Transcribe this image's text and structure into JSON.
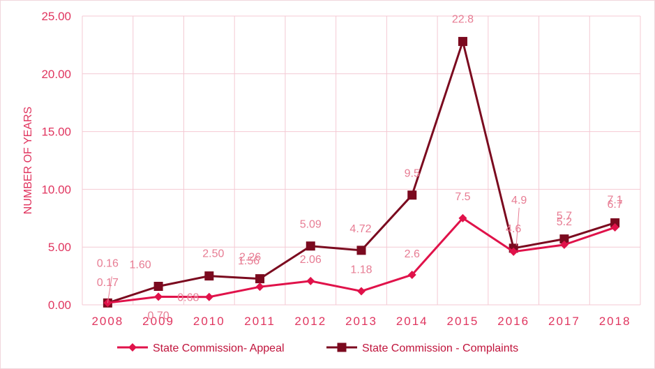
{
  "chart_data": {
    "type": "line",
    "title": "",
    "xlabel": "",
    "ylabel": "NUMBER OF YEARS",
    "ylim": [
      0,
      25
    ],
    "yticks": [
      "0.00",
      "5.00",
      "10.00",
      "15.00",
      "20.00",
      "25.00"
    ],
    "categories": [
      "2008",
      "2009",
      "2010",
      "2011",
      "2012",
      "2013",
      "2014",
      "2015",
      "2016",
      "2017",
      "2018"
    ],
    "grid": true,
    "legend_position": "bottom",
    "series": [
      {
        "name": "State Commission- Appeal",
        "color": "#e0124a",
        "marker": "diamond",
        "values": [
          0.17,
          0.7,
          0.68,
          1.56,
          2.06,
          1.18,
          2.6,
          7.5,
          4.6,
          5.2,
          6.7
        ],
        "labels": [
          "0.17",
          "0.70",
          "0.68",
          "1.56",
          "2.06",
          "1.18",
          "2.6",
          "7.5",
          "4.6",
          "5.2",
          "6.7"
        ]
      },
      {
        "name": "State Commission - Complaints",
        "color": "#7b0a1f",
        "marker": "square",
        "values": [
          0.16,
          1.6,
          2.5,
          2.26,
          5.09,
          4.72,
          9.5,
          22.8,
          4.9,
          5.7,
          7.1
        ],
        "labels": [
          "0.16",
          "1.60",
          "2.50",
          "2.26",
          "5.09",
          "4.72",
          "9.5",
          "22.8",
          "4.9",
          "5.7",
          "7.1"
        ]
      }
    ]
  }
}
